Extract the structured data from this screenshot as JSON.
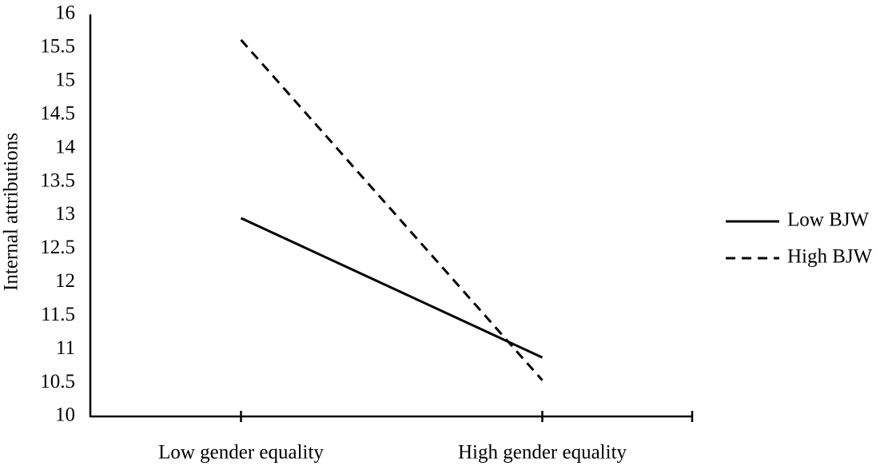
{
  "chart_data": {
    "type": "line",
    "y_label": "Internal attributions",
    "categories": [
      "Low gender equality",
      "High gender equality"
    ],
    "series": [
      {
        "name": "Low BJW",
        "color": "#000000",
        "dash": "solid",
        "values": [
          12.96,
          10.88
        ]
      },
      {
        "name": "High BJW",
        "color": "#000000",
        "dash": "dashed",
        "values": [
          15.62,
          10.54
        ]
      }
    ],
    "ylim": [
      10,
      16
    ],
    "yticks": [
      10,
      10.5,
      11,
      11.5,
      12,
      12.5,
      13,
      13.5,
      14,
      14.5,
      15,
      15.5,
      16
    ],
    "grid": false,
    "legend": "right"
  }
}
